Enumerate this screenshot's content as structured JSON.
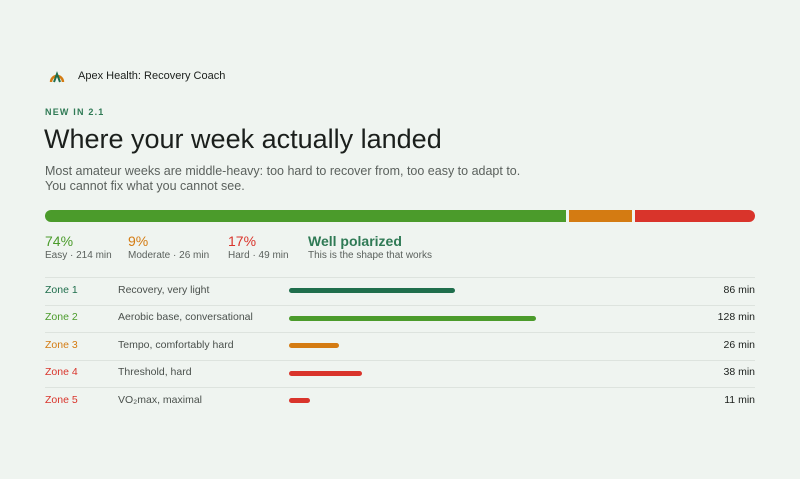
{
  "app": {
    "name": "Apex Health: Recovery Coach"
  },
  "badge": "NEW IN 2.1",
  "title": "Where your week actually landed",
  "subtitle": "Most amateur weeks are middle-heavy: too hard to recover from, too easy to adapt to. You cannot fix what you cannot see.",
  "summary": {
    "segments": [
      {
        "value": 74,
        "label": "74%",
        "caption": "Easy · 214 min",
        "color": "#4b9b2b"
      },
      {
        "value": 9,
        "label": "9%",
        "caption": "Moderate · 26 min",
        "color": "#d47b12"
      },
      {
        "value": 17,
        "label": "17%",
        "caption": "Hard · 49 min",
        "color": "#d9342b"
      }
    ],
    "verdict": "Well polarized",
    "verdict_note": "This is the shape that works"
  },
  "zones": [
    {
      "name": "Zone 1",
      "description": "Recovery, very light",
      "minutes": 86,
      "minutes_label": "86 min",
      "color": "#1f6e4c"
    },
    {
      "name": "Zone 2",
      "description": "Aerobic base, conversational",
      "minutes": 128,
      "minutes_label": "128 min",
      "color": "#4b9b2b"
    },
    {
      "name": "Zone 3",
      "description": "Tempo, comfortably hard",
      "minutes": 26,
      "minutes_label": "26 min",
      "color": "#d47b12"
    },
    {
      "name": "Zone 4",
      "description": "Threshold, hard",
      "minutes": 38,
      "minutes_label": "38 min",
      "color": "#d9342b"
    },
    {
      "name": "Zone 5",
      "description": "VO₂max, maximal",
      "minutes": 11,
      "minutes_label": "11 min",
      "color": "#d9342b"
    }
  ]
}
